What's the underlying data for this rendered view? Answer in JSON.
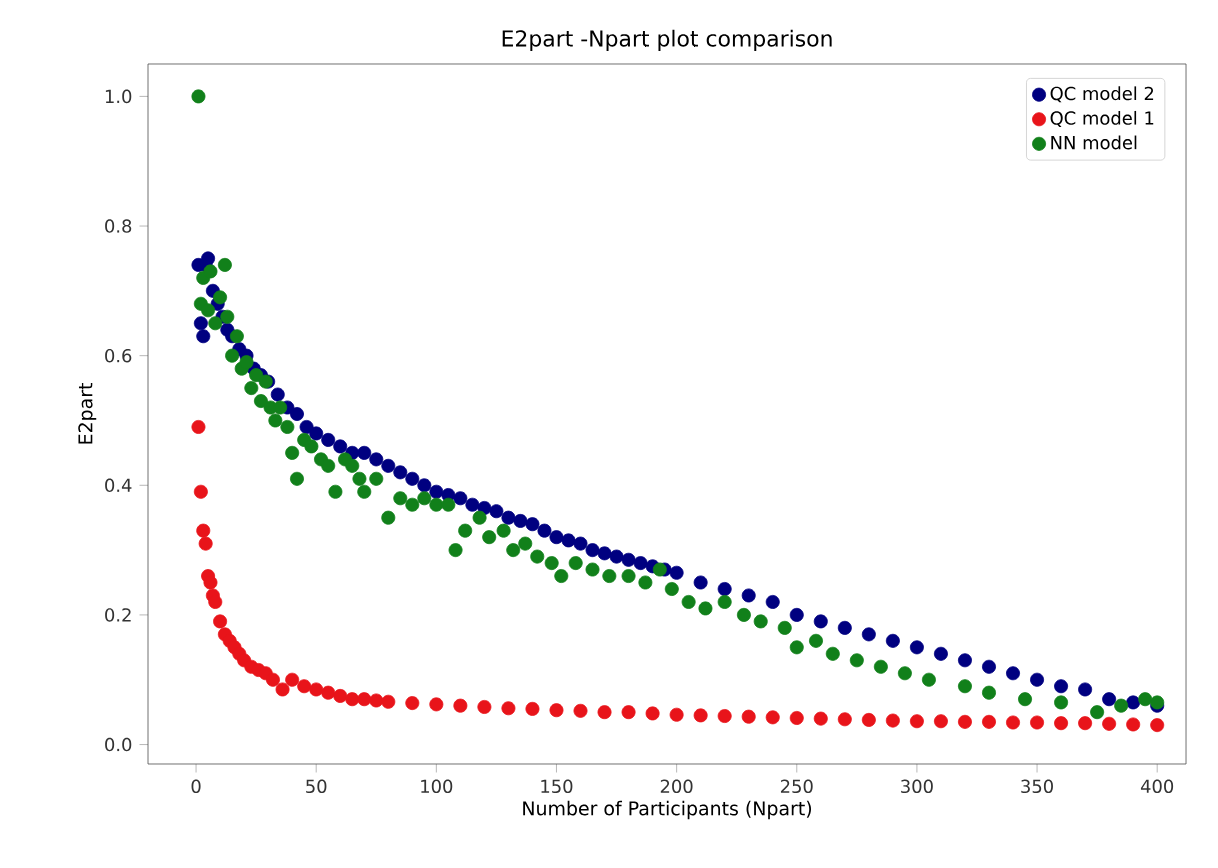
{
  "chart_data": {
    "type": "scatter",
    "title": "E2part -Npart plot comparison",
    "xlabel": "Number of Participants (Npart)",
    "ylabel": "E2part",
    "marker": "circle",
    "legend": "top right",
    "xlim": [
      -20,
      412
    ],
    "ylim": [
      -0.03,
      1.05
    ],
    "xticks": [
      0,
      50,
      100,
      150,
      200,
      250,
      300,
      350,
      400
    ],
    "yticks": [
      {
        "value": 0,
        "label": "0.0"
      },
      {
        "value": 0.2,
        "label": "0.2"
      },
      {
        "value": 0.4,
        "label": "0.4"
      },
      {
        "value": 0.6,
        "label": "0.6"
      },
      {
        "value": 0.8,
        "label": "0.8"
      },
      {
        "value": 1.0,
        "label": "1.0"
      }
    ],
    "series": [
      {
        "name": "QC model 2",
        "color": "#000080",
        "x": [
          1,
          2,
          3,
          4,
          5,
          7,
          9,
          11,
          13,
          15,
          18,
          21,
          24,
          27,
          30,
          34,
          38,
          42,
          46,
          50,
          55,
          60,
          65,
          70,
          75,
          80,
          85,
          90,
          95,
          100,
          105,
          110,
          115,
          120,
          125,
          130,
          135,
          140,
          145,
          150,
          155,
          160,
          165,
          170,
          175,
          180,
          185,
          190,
          195,
          200,
          210,
          220,
          230,
          240,
          250,
          260,
          270,
          280,
          290,
          300,
          310,
          320,
          330,
          340,
          350,
          360,
          370,
          380,
          390,
          400
        ],
        "values": [
          0.74,
          0.65,
          0.63,
          0.74,
          0.75,
          0.7,
          0.68,
          0.66,
          0.64,
          0.63,
          0.61,
          0.6,
          0.58,
          0.57,
          0.56,
          0.54,
          0.52,
          0.51,
          0.49,
          0.48,
          0.47,
          0.46,
          0.45,
          0.45,
          0.44,
          0.43,
          0.42,
          0.41,
          0.4,
          0.39,
          0.385,
          0.38,
          0.37,
          0.365,
          0.36,
          0.35,
          0.345,
          0.34,
          0.33,
          0.32,
          0.315,
          0.31,
          0.3,
          0.295,
          0.29,
          0.285,
          0.28,
          0.275,
          0.27,
          0.265,
          0.25,
          0.24,
          0.23,
          0.22,
          0.2,
          0.19,
          0.18,
          0.17,
          0.16,
          0.15,
          0.14,
          0.13,
          0.12,
          0.11,
          0.1,
          0.09,
          0.085,
          0.07,
          0.065,
          0.06
        ]
      },
      {
        "name": "QC model 1",
        "color": "#e8141a",
        "x": [
          1,
          2,
          3,
          4,
          5,
          6,
          7,
          8,
          10,
          12,
          14,
          16,
          18,
          20,
          23,
          26,
          29,
          32,
          36,
          40,
          45,
          50,
          55,
          60,
          65,
          70,
          75,
          80,
          90,
          100,
          110,
          120,
          130,
          140,
          150,
          160,
          170,
          180,
          190,
          200,
          210,
          220,
          230,
          240,
          250,
          260,
          270,
          280,
          290,
          300,
          310,
          320,
          330,
          340,
          350,
          360,
          370,
          380,
          390,
          400
        ],
        "values": [
          0.49,
          0.39,
          0.33,
          0.31,
          0.26,
          0.25,
          0.23,
          0.22,
          0.19,
          0.17,
          0.16,
          0.15,
          0.14,
          0.13,
          0.12,
          0.115,
          0.11,
          0.1,
          0.085,
          0.1,
          0.09,
          0.085,
          0.08,
          0.075,
          0.07,
          0.07,
          0.068,
          0.066,
          0.064,
          0.062,
          0.06,
          0.058,
          0.056,
          0.055,
          0.053,
          0.052,
          0.05,
          0.05,
          0.048,
          0.046,
          0.045,
          0.044,
          0.043,
          0.042,
          0.041,
          0.04,
          0.039,
          0.038,
          0.037,
          0.036,
          0.036,
          0.035,
          0.035,
          0.034,
          0.034,
          0.033,
          0.033,
          0.032,
          0.031,
          0.03
        ]
      },
      {
        "name": "NN model",
        "color": "#11801a",
        "x": [
          1,
          2,
          3,
          5,
          6,
          8,
          10,
          12,
          13,
          15,
          17,
          19,
          21,
          23,
          25,
          27,
          29,
          31,
          33,
          35,
          38,
          40,
          42,
          45,
          48,
          52,
          55,
          58,
          62,
          65,
          68,
          70,
          75,
          80,
          85,
          90,
          95,
          100,
          105,
          108,
          112,
          118,
          122,
          128,
          132,
          137,
          142,
          148,
          152,
          158,
          165,
          172,
          180,
          187,
          193,
          198,
          205,
          212,
          220,
          228,
          235,
          245,
          250,
          258,
          265,
          275,
          285,
          295,
          305,
          320,
          330,
          345,
          360,
          375,
          385,
          395,
          400
        ],
        "values": [
          1.0,
          0.68,
          0.72,
          0.67,
          0.73,
          0.65,
          0.69,
          0.74,
          0.66,
          0.6,
          0.63,
          0.58,
          0.59,
          0.55,
          0.57,
          0.53,
          0.56,
          0.52,
          0.5,
          0.52,
          0.49,
          0.45,
          0.41,
          0.47,
          0.46,
          0.44,
          0.43,
          0.39,
          0.44,
          0.43,
          0.41,
          0.39,
          0.41,
          0.35,
          0.38,
          0.37,
          0.38,
          0.37,
          0.37,
          0.3,
          0.33,
          0.35,
          0.32,
          0.33,
          0.3,
          0.31,
          0.29,
          0.28,
          0.26,
          0.28,
          0.27,
          0.26,
          0.26,
          0.25,
          0.27,
          0.24,
          0.22,
          0.21,
          0.22,
          0.2,
          0.19,
          0.18,
          0.15,
          0.16,
          0.14,
          0.13,
          0.12,
          0.11,
          0.1,
          0.09,
          0.08,
          0.07,
          0.065,
          0.05,
          0.06,
          0.07,
          0.065
        ]
      }
    ]
  }
}
